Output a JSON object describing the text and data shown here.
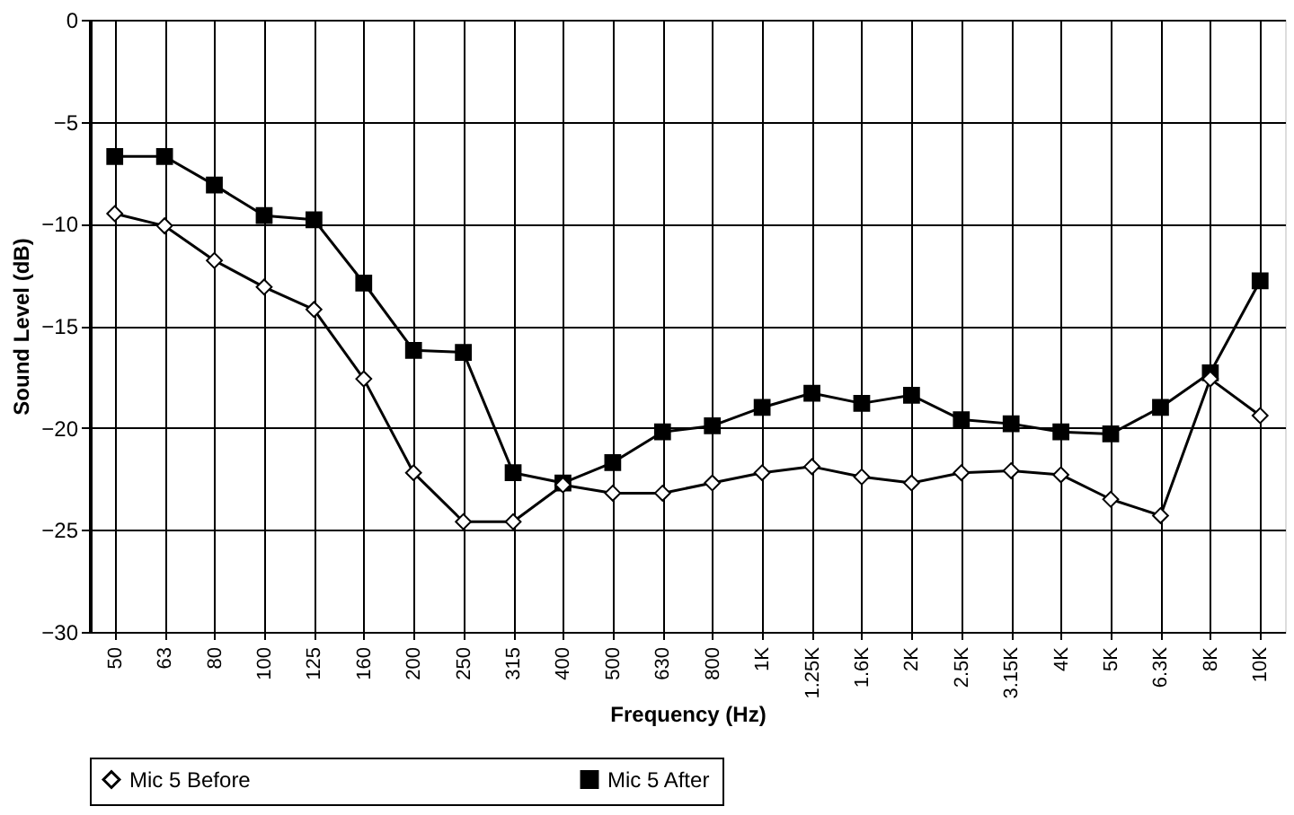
{
  "chart_data": {
    "type": "line",
    "xlabel": "Frequency (Hz)",
    "ylabel": "Sound Level (dB)",
    "categories": [
      "50",
      "63",
      "80",
      "100",
      "125",
      "160",
      "200",
      "250",
      "315",
      "400",
      "500",
      "630",
      "800",
      "1K",
      "1.25K",
      "1.6K",
      "2K",
      "2.5K",
      "3.15K",
      "4K",
      "5K",
      "6.3K",
      "8K",
      "10K"
    ],
    "series": [
      {
        "name": "Mic 5 Before",
        "color": "#000000",
        "marker": "diamond",
        "values": [
          -9.5,
          -10.1,
          -11.8,
          -13.1,
          -14.2,
          -17.6,
          -22.2,
          -24.6,
          -24.6,
          -22.8,
          -23.2,
          -23.2,
          -22.7,
          -22.2,
          -21.9,
          -22.4,
          -22.7,
          -22.2,
          -22.1,
          -22.3,
          -23.5,
          -24.3,
          -17.6,
          -19.4
        ]
      },
      {
        "name": "Mic 5 After",
        "color": "#000000",
        "marker": "square",
        "values": [
          -6.7,
          -6.7,
          -8.1,
          -9.6,
          -9.8,
          -12.9,
          -16.2,
          -16.3,
          -22.2,
          -22.7,
          -21.7,
          -20.2,
          -19.9,
          -19.0,
          -18.3,
          -18.8,
          -18.4,
          -19.6,
          -19.8,
          -20.2,
          -20.3,
          -19.0,
          -17.3,
          -12.8
        ]
      }
    ],
    "ylim": [
      -30,
      0
    ],
    "yticks": [
      -30,
      -25,
      -20,
      -15,
      -10,
      -5,
      0
    ],
    "grid": true,
    "legend": "bottom",
    "line_style": "solid"
  }
}
